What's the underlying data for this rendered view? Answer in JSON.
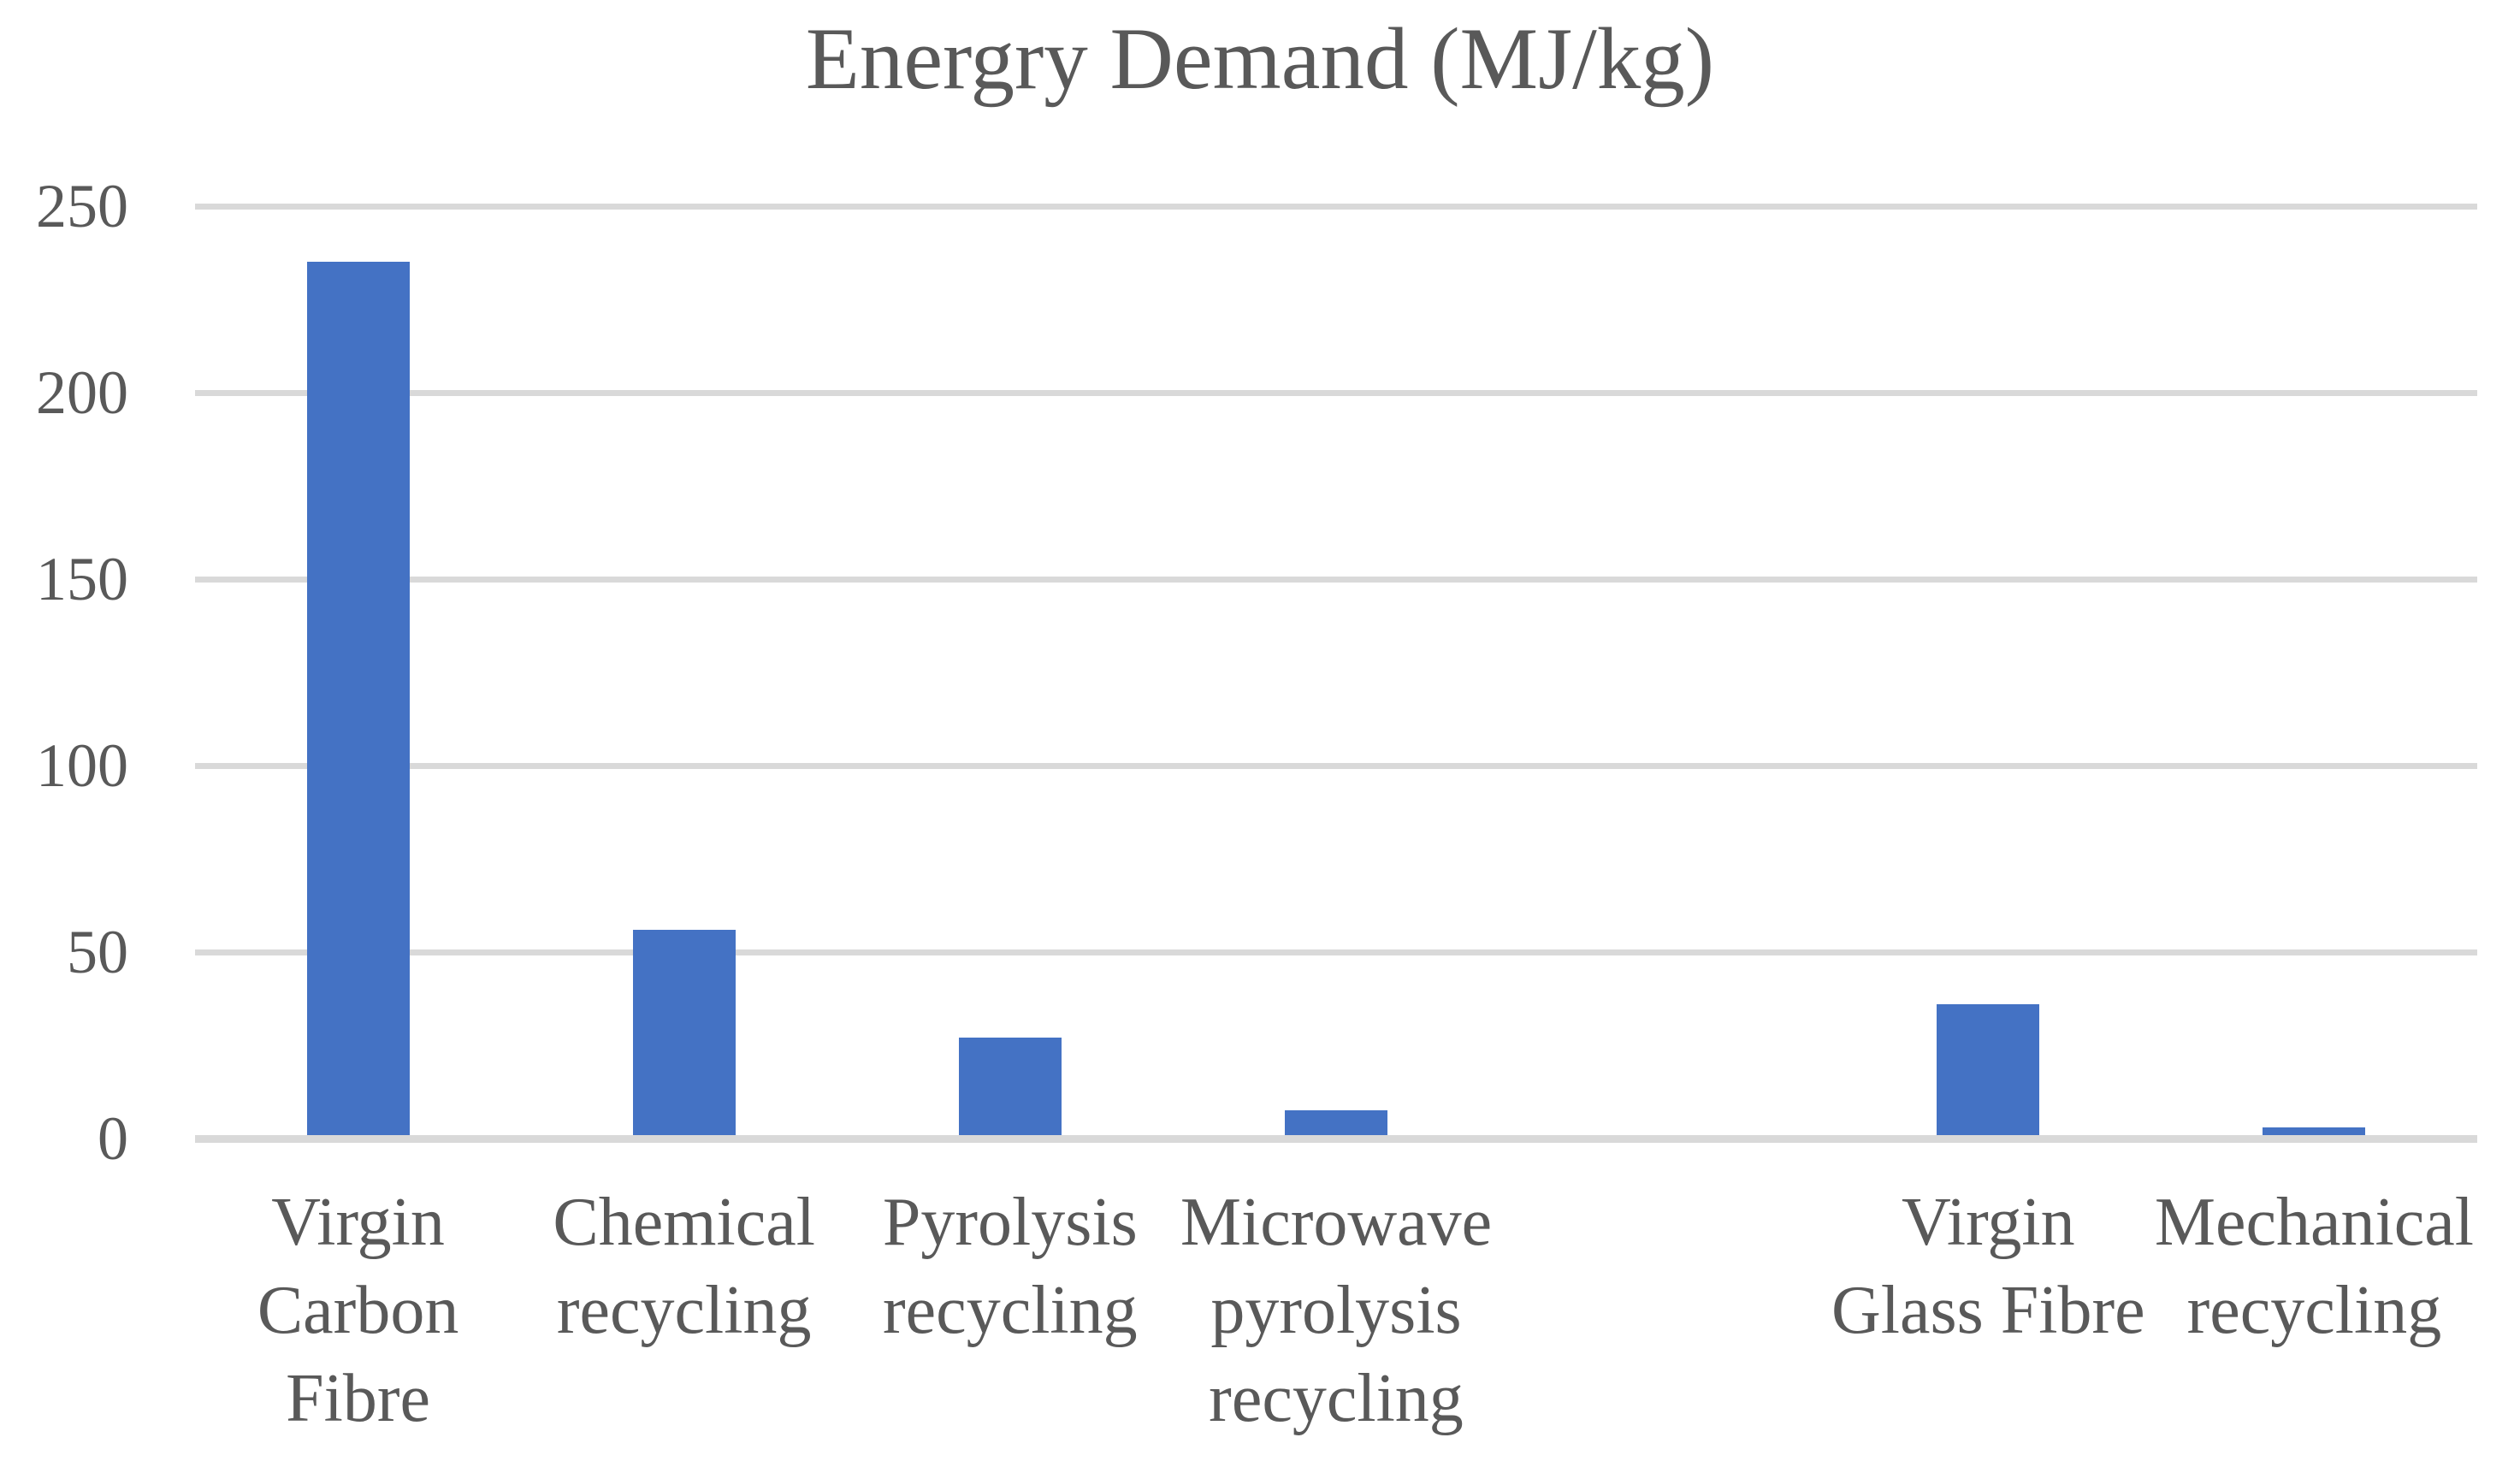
{
  "figure": {
    "background_color": "#FFFFFF",
    "text_color": "#595959"
  },
  "chart_data": {
    "type": "bar",
    "title": "Energry Demand (MJ/kg)",
    "unit": "MJ/kg",
    "categories": [
      "Virgin Carbon Fibre",
      "Chemical recycling",
      "Pyrolysis recycling",
      "Microwave pyrolysis recycling",
      "",
      "Virgin Glass Fibre",
      "Mechanical recycling"
    ],
    "category_lines": [
      [
        "Virgin",
        "Carbon",
        "Fibre"
      ],
      [
        "Chemical",
        "recycling"
      ],
      [
        "Pyrolysis",
        "recycling"
      ],
      [
        "Microwave",
        "pyrolysis",
        "recycling"
      ],
      [],
      [
        "Virgin",
        "Glass Fibre"
      ],
      [
        "Mechanical",
        "recycling"
      ]
    ],
    "values": [
      235,
      56,
      27,
      7.5,
      null,
      36,
      3
    ],
    "xlabel": "",
    "ylabel": "",
    "ylim": [
      0,
      250
    ],
    "yticks": [
      0,
      50,
      100,
      150,
      200,
      250
    ],
    "grid": true,
    "legend": false,
    "bar_color": "#4472C4",
    "gridline_color": "#D9D9D9",
    "axis_line_color": "#D9D9D9",
    "tick_label_color": "#595959",
    "title_color": "#595959"
  }
}
